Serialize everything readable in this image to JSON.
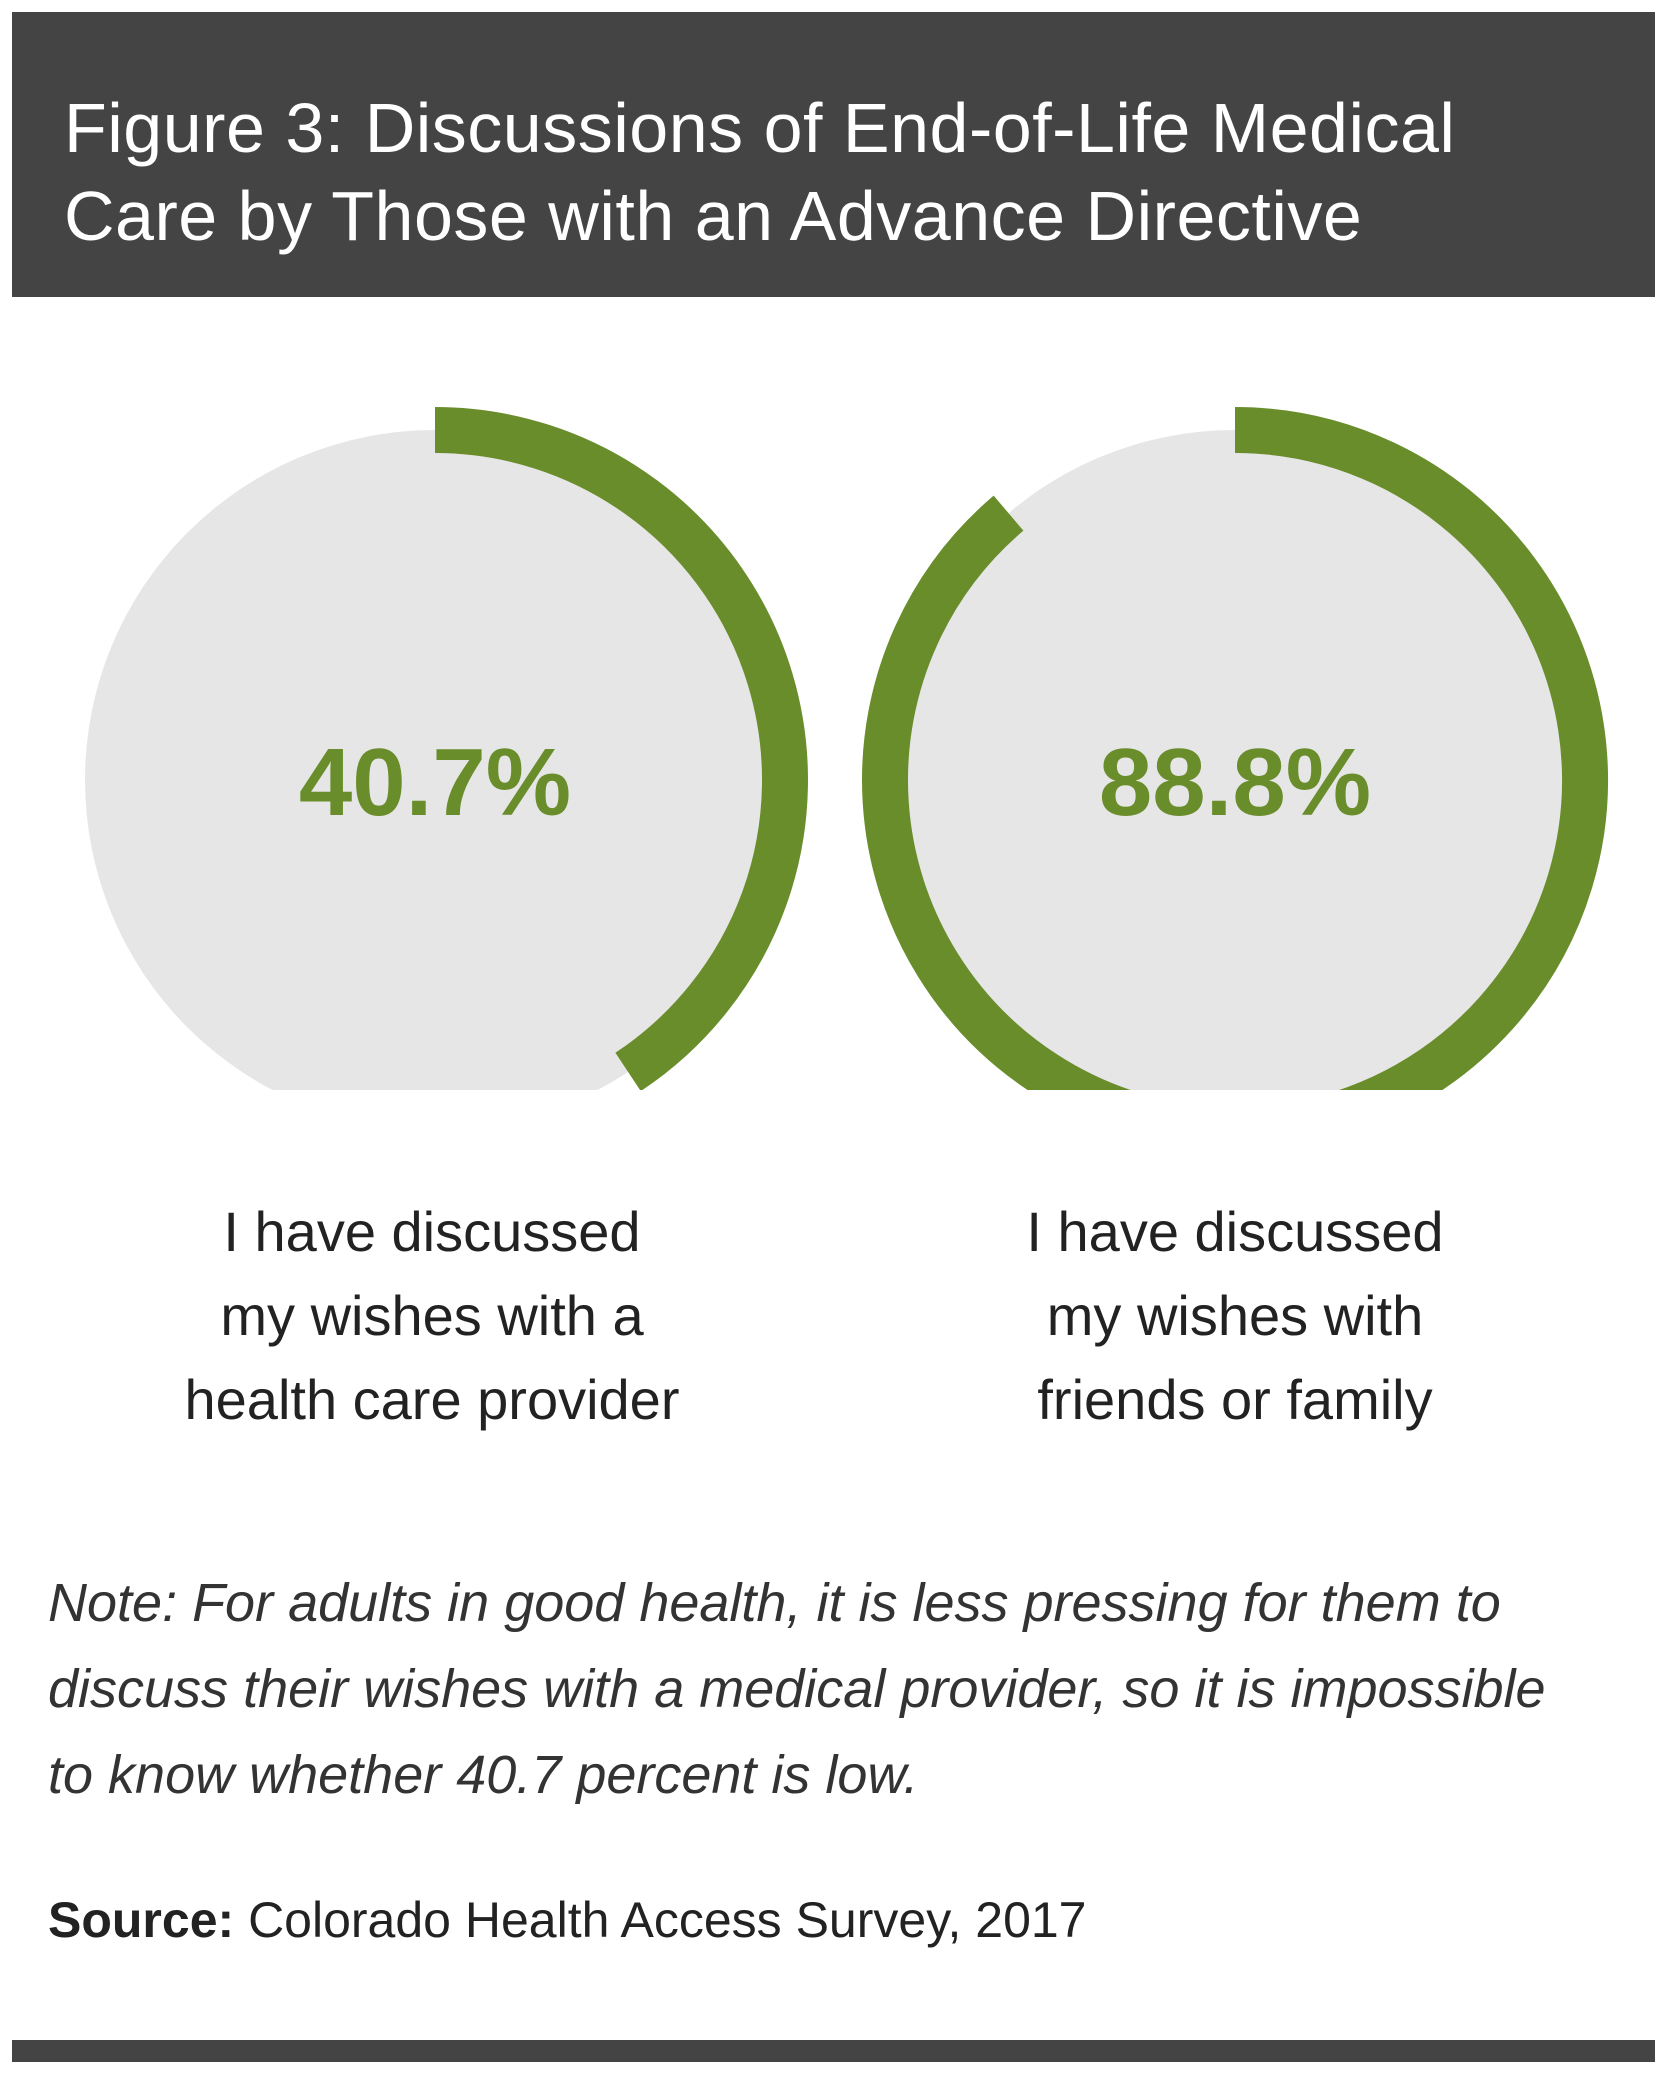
{
  "header": {
    "title_line_1": "Figure 3: Discussions of End-of-Life Medical",
    "title_line_2": "Care by Those with an Advance Directive"
  },
  "colors": {
    "header_bg": "#444444",
    "accent": "#6a8d2b",
    "circle_fill": "#e6e6e6",
    "text": "#222222"
  },
  "chart_data": [
    {
      "type": "pie",
      "title": "Figure 3: Discussions of End-of-Life Medical Care by Those with an Advance Directive",
      "value": 40.7,
      "max": 100,
      "display": "40.7%",
      "label_lines": [
        "I have discussed",
        "my wishes with a",
        "health care provider"
      ]
    },
    {
      "type": "pie",
      "title": "Figure 3: Discussions of End-of-Life Medical Care by Those with an Advance Directive",
      "value": 88.8,
      "max": 100,
      "display": "88.8%",
      "label_lines": [
        "I have discussed",
        "my wishes with",
        "friends or family"
      ]
    }
  ],
  "note": {
    "line_1": "Note: For adults in good health, it is less pressing for them to",
    "line_2": "discuss their wishes with a medical provider, so it is impossible",
    "line_3": "to know whether 40.7 percent is low."
  },
  "source": {
    "label": "Source:",
    "text": " Colorado Health Access Survey, 2017"
  }
}
